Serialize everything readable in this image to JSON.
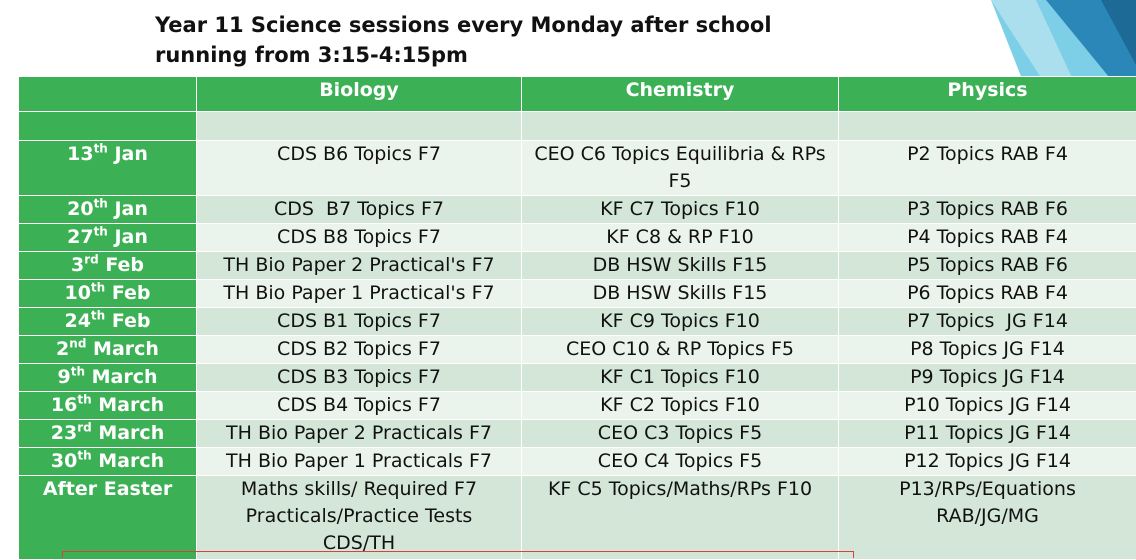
{
  "title": {
    "line1": "Year 11 Science sessions every Monday after school",
    "line2": "running from 3:15-4:15pm"
  },
  "colors": {
    "header_green": "#3cb054",
    "row_dark": "#d3e6d7",
    "row_light": "#eaf3ec"
  },
  "columns": [
    "",
    "Biology",
    "Chemistry",
    "Physics"
  ],
  "rows": [
    {
      "date_num": "13",
      "date_sup": "th",
      "date_rest": " Jan",
      "biology": "CDS B6 Topics F7",
      "chemistry": "CEO C6 Topics Equilibria & RPs F5",
      "physics": "P2 Topics RAB F4"
    },
    {
      "date_num": "20",
      "date_sup": "th",
      "date_rest": " Jan",
      "biology": "CDS  B7 Topics F7",
      "chemistry": "KF C7 Topics F10",
      "physics": "P3 Topics RAB F6"
    },
    {
      "date_num": "27",
      "date_sup": "th",
      "date_rest": " Jan",
      "biology": "CDS B8 Topics F7",
      "chemistry": "KF C8 & RP F10",
      "physics": "P4 Topics RAB F4"
    },
    {
      "date_num": "3",
      "date_sup": "rd",
      "date_rest": " Feb",
      "biology": "TH Bio Paper 2 Practical's F7",
      "chemistry": "DB HSW Skills F15",
      "physics": "P5 Topics RAB F6"
    },
    {
      "date_num": "10",
      "date_sup": "th",
      "date_rest": " Feb",
      "biology": "TH Bio Paper 1 Practical's F7",
      "chemistry": "DB HSW Skills F15",
      "physics": "P6 Topics RAB F4"
    },
    {
      "date_num": "24",
      "date_sup": "th",
      "date_rest": " Feb",
      "biology": "CDS B1 Topics F7",
      "chemistry": "KF C9 Topics F10",
      "physics": "P7 Topics  JG F14"
    },
    {
      "date_num": "2",
      "date_sup": "nd",
      "date_rest": " March",
      "biology": "CDS B2 Topics F7",
      "chemistry": "CEO C10 & RP Topics F5",
      "physics": "P8 Topics JG F14"
    },
    {
      "date_num": "9",
      "date_sup": "th",
      "date_rest": " March",
      "biology": "CDS B3 Topics F7",
      "chemistry": "KF C1 Topics F10",
      "physics": "P9 Topics JG F14"
    },
    {
      "date_num": "16",
      "date_sup": "th",
      "date_rest": " March",
      "biology": "CDS B4 Topics F7",
      "chemistry": "KF C2 Topics F10",
      "physics": "P10 Topics JG F14"
    },
    {
      "date_num": "23",
      "date_sup": "rd",
      "date_rest": " March",
      "biology": "TH Bio Paper 2 Practicals F7",
      "chemistry": "CEO C3 Topics F5",
      "physics": "P11 Topics JG F14"
    },
    {
      "date_num": "30",
      "date_sup": "th",
      "date_rest": " March",
      "biology": "TH Bio Paper 1 Practicals F7",
      "chemistry": "CEO C4 Topics F5",
      "physics": "P12 Topics JG F14"
    },
    {
      "date_num": "After Easter",
      "date_sup": "",
      "date_rest": "",
      "biology": "Maths skills/ Required F7 Practicals/Practice Tests CDS/TH",
      "chemistry": "KF C5 Topics/Maths/RPs F10",
      "physics": "P13/RPs/Equations RAB/JG/MG"
    }
  ]
}
